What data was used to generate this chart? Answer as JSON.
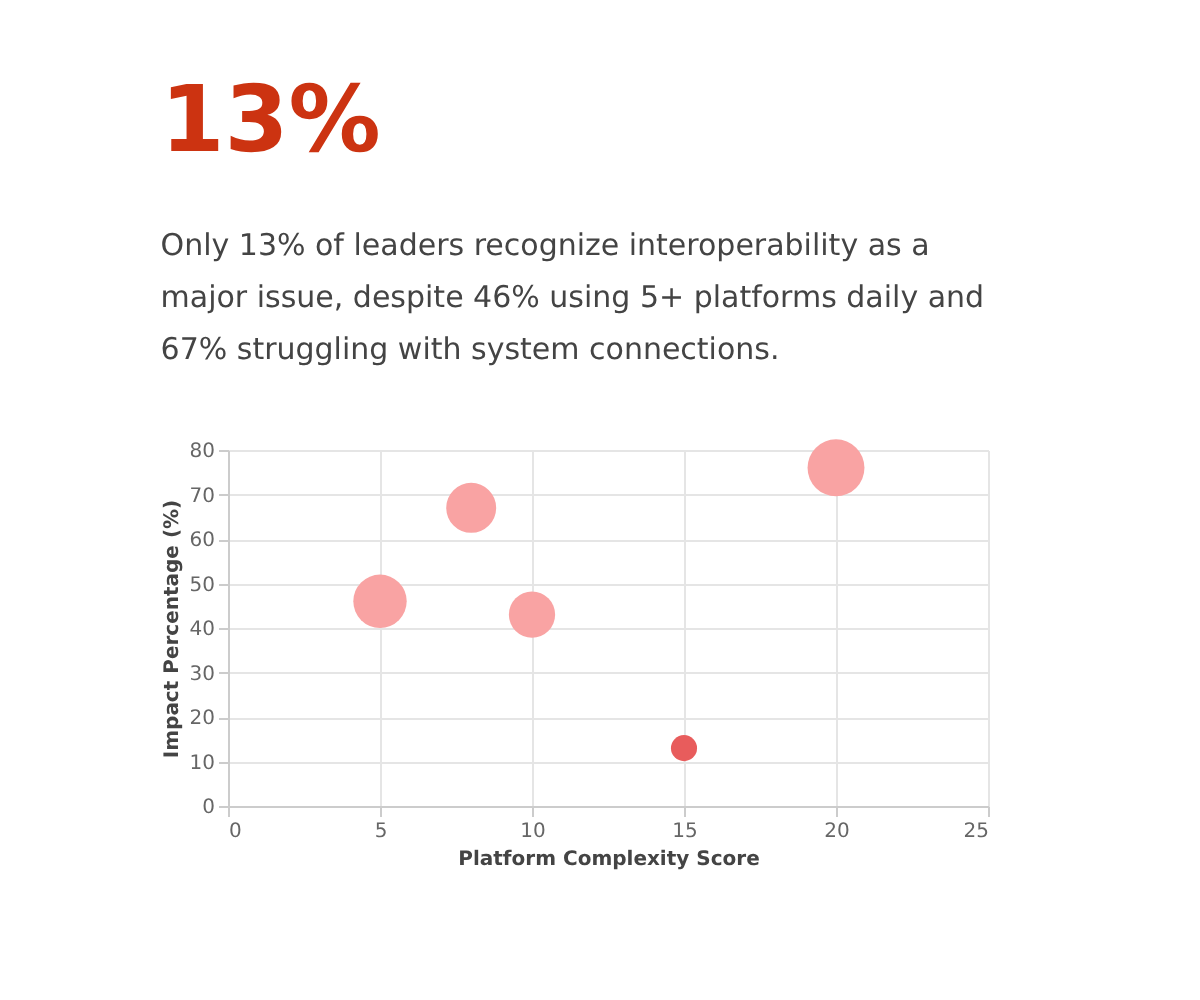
{
  "chart_data": {
    "type": "bubble",
    "title": "13%",
    "subtitle": "Only 13% of leaders recognize interoperability as a major issue, despite 46% using 5+ platforms daily and 67% struggling with system connections.",
    "xlabel": "Platform Complexity Score",
    "ylabel": "Impact Percentage (%)",
    "x": [
      5,
      8,
      10,
      15,
      20
    ],
    "values": [
      46,
      67,
      43,
      13,
      76
    ],
    "sizes": [
      0.88,
      0.77,
      0.66,
      0.21,
      1
    ],
    "colors": [
      "#f9a3a3",
      "#f9a3a3",
      "#f9a3a3",
      "#e85c5c",
      "#f9a3a3"
    ],
    "xlim": [
      0,
      25
    ],
    "xticks": [
      0,
      5,
      10,
      15,
      20,
      25
    ],
    "ylim": [
      0,
      80
    ],
    "yticks": [
      0,
      10,
      20,
      30,
      40,
      50,
      60,
      70,
      80
    ],
    "grid": true,
    "legend": false
  }
}
